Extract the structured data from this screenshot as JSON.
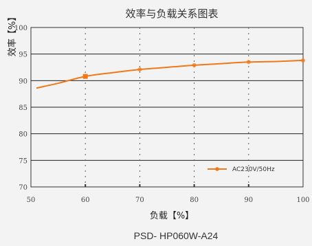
{
  "chart_data": {
    "type": "line",
    "title": "效率与负载关系图表",
    "xlabel": "负载【%】",
    "ylabel": "效率【%】",
    "subtitle": "PSD- HP060W-A24",
    "xlim": [
      50,
      100
    ],
    "ylim": [
      70,
      100
    ],
    "x_ticks": [
      50,
      60,
      70,
      80,
      90,
      100
    ],
    "y_ticks": [
      70,
      75,
      80,
      85,
      90,
      95,
      100
    ],
    "y_tick_labels": [
      "70",
      "75",
      "80",
      "85",
      "90",
      "95",
      "100"
    ],
    "grid": true,
    "legend_position": "bottom-right",
    "series": [
      {
        "name": "AC230V/50Hz",
        "color": "#f07818",
        "x": [
          51,
          55,
          60,
          65,
          70,
          75,
          80,
          85,
          90,
          95,
          100
        ],
        "y": [
          88.6,
          89.5,
          90.8,
          91.5,
          92.1,
          92.5,
          92.9,
          93.2,
          93.5,
          93.6,
          93.8
        ],
        "markers": [
          {
            "x": 60,
            "y": 90.8,
            "shape": "square"
          },
          {
            "x": 70,
            "y": 92.1,
            "shape": "circle"
          },
          {
            "x": 80,
            "y": 92.9,
            "shape": "circle"
          },
          {
            "x": 90,
            "y": 93.5,
            "shape": "circle"
          },
          {
            "x": 100,
            "y": 93.8,
            "shape": "circle"
          }
        ]
      }
    ]
  }
}
